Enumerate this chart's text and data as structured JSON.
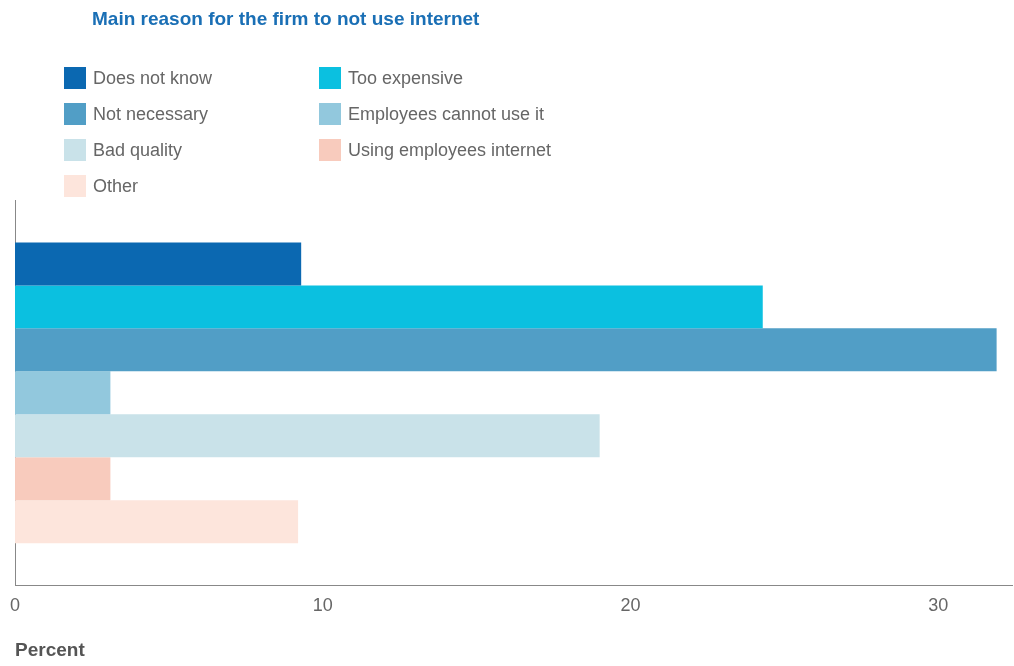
{
  "chart_data": {
    "type": "bar",
    "orientation": "horizontal",
    "title": "Main reason for the firm to not use internet",
    "xlabel": "Percent",
    "categories": [
      null
    ],
    "series": [
      {
        "name": "Does not know",
        "color": "#0b68b1",
        "values": [
          9.3
        ]
      },
      {
        "name": "Too expensive",
        "color": "#0bc0e0",
        "values": [
          24.3
        ]
      },
      {
        "name": "Not necessary",
        "color": "#519ec6",
        "values": [
          31.9
        ]
      },
      {
        "name": "Employees cannot use it",
        "color": "#92c8dd",
        "values": [
          3.1
        ]
      },
      {
        "name": "Bad quality",
        "color": "#c9e2e9",
        "values": [
          19.0
        ]
      },
      {
        "name": "Using employees internet",
        "color": "#f8cbbd",
        "values": [
          3.1
        ]
      },
      {
        "name": "Other",
        "color": "#fde5dc",
        "values": [
          9.2
        ]
      }
    ],
    "xlim": [
      0,
      32.4
    ],
    "xticks": [
      0,
      10,
      20,
      30
    ],
    "grid": false,
    "legend": "top left"
  }
}
